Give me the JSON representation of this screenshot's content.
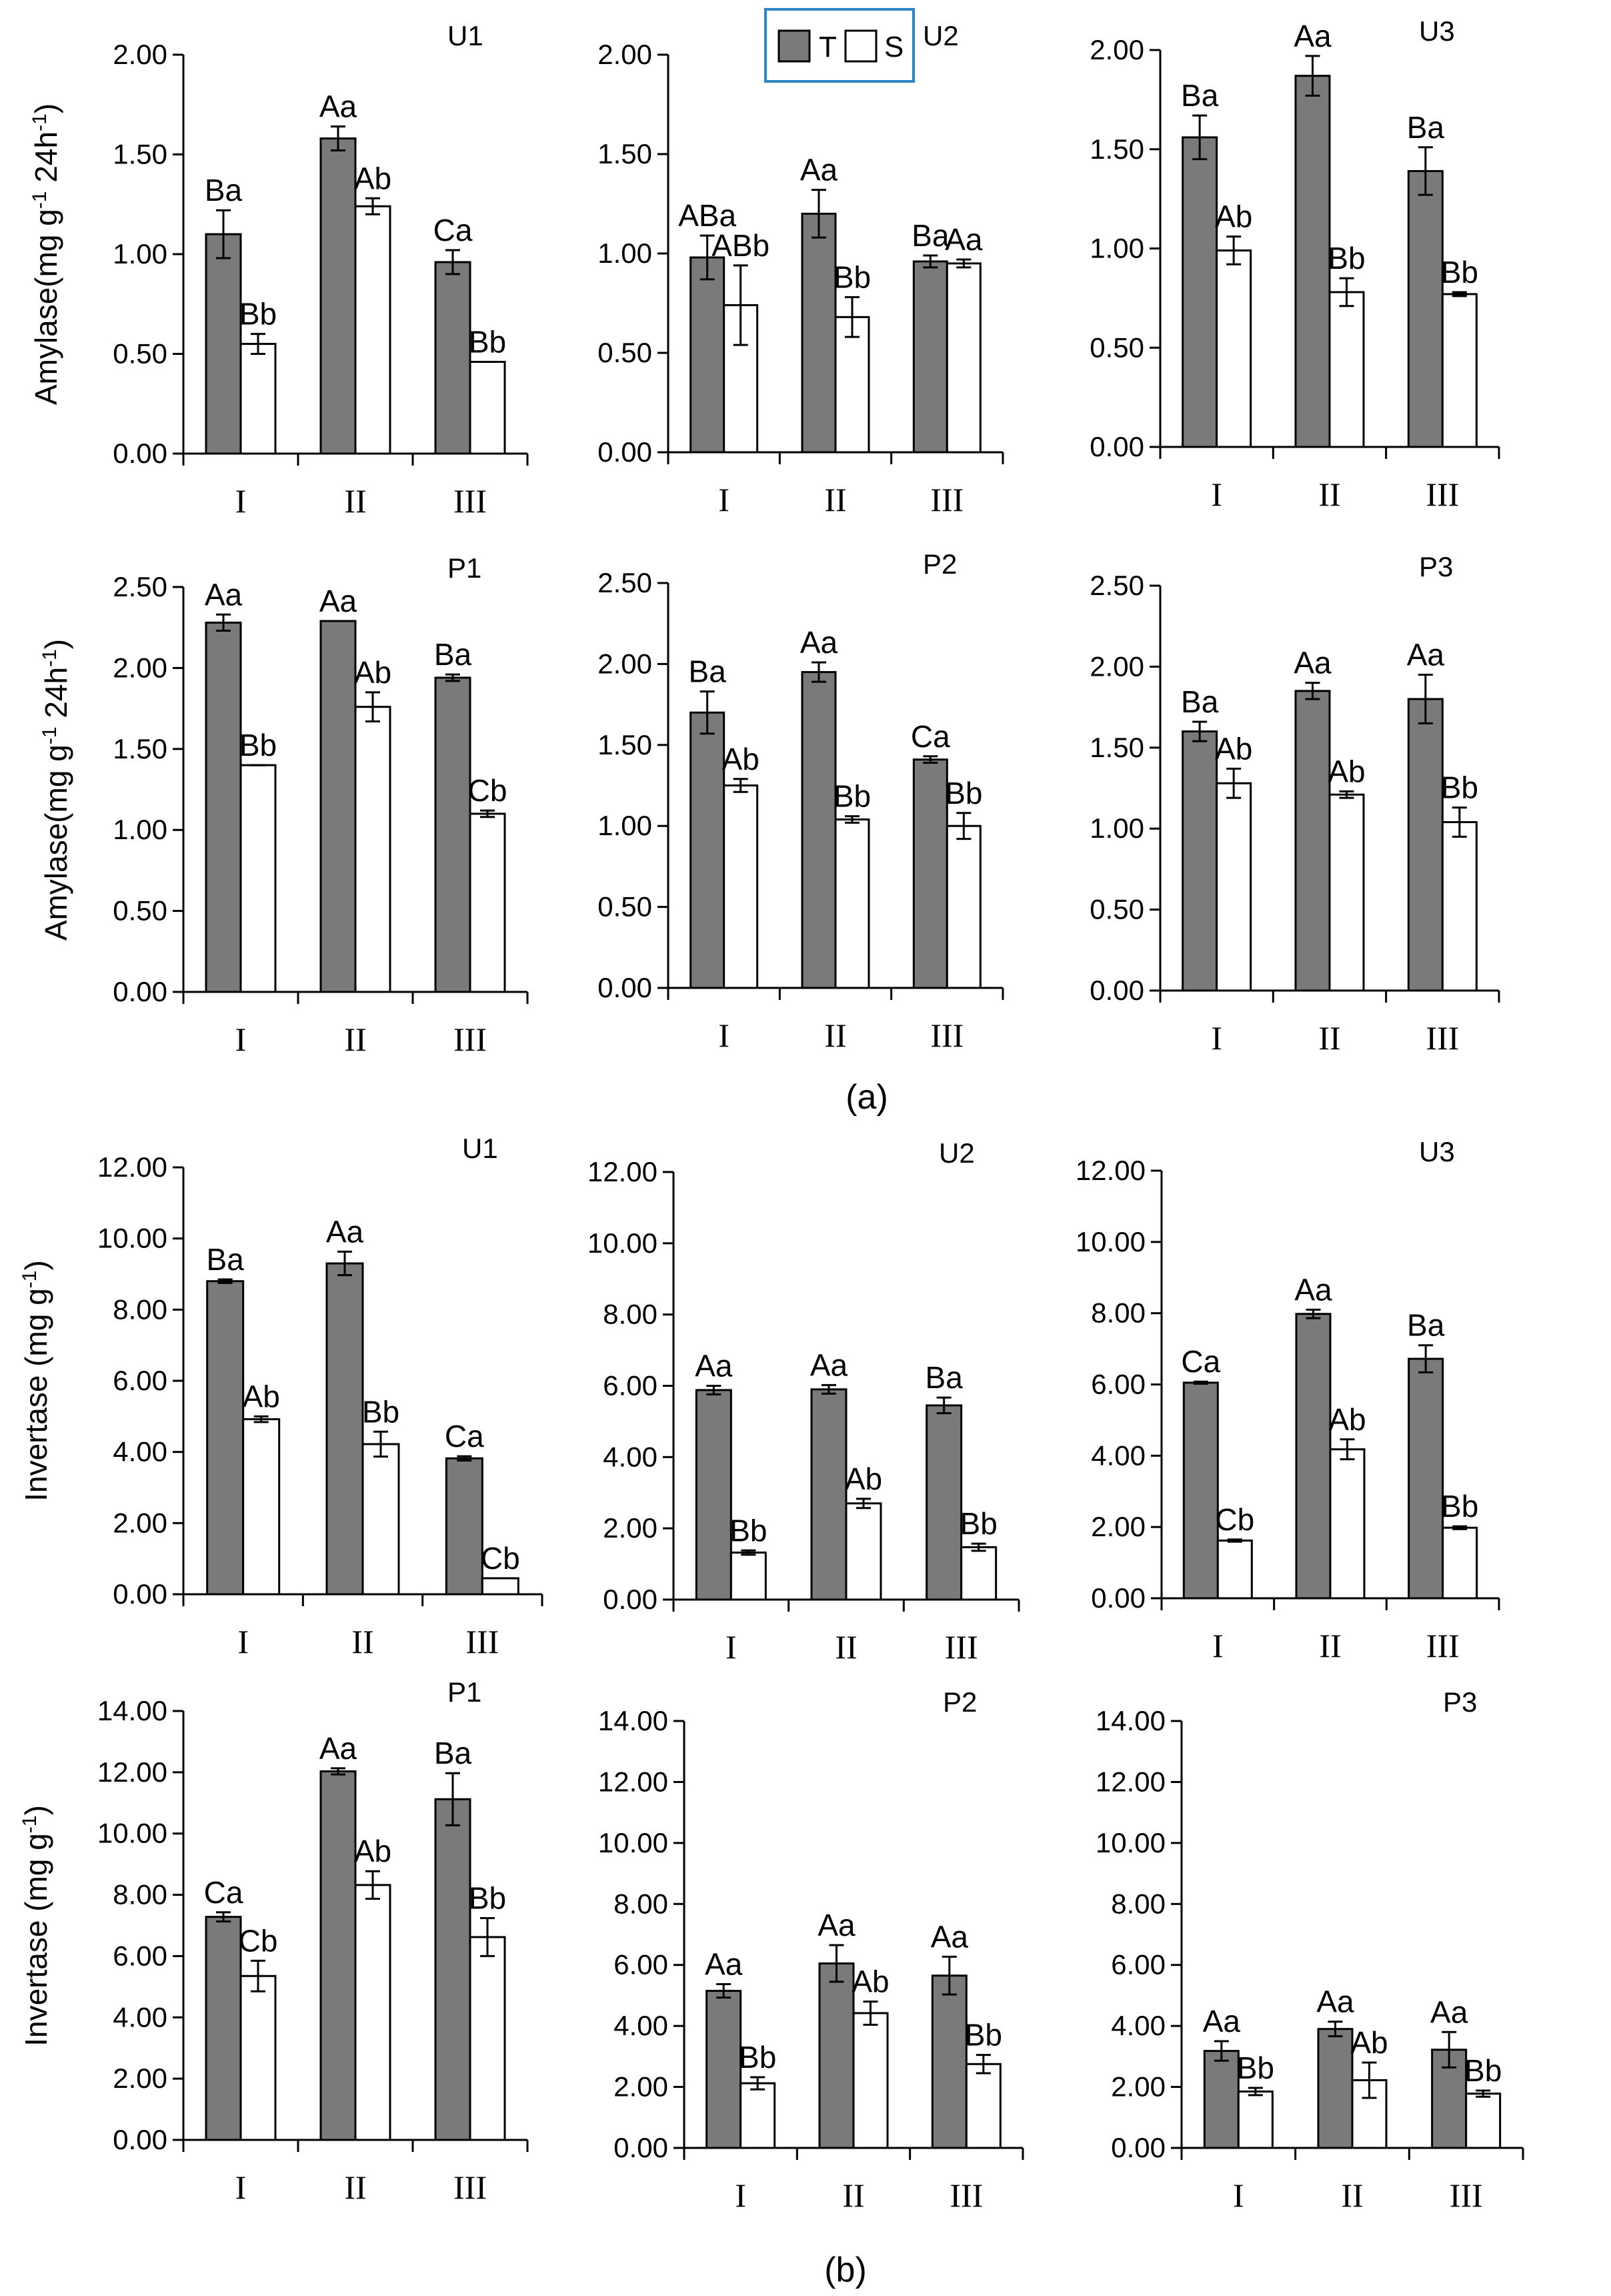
{
  "colors": {
    "treated": "#7a7a7a",
    "control": "#ffffff",
    "legend_border": "#2e86c1"
  },
  "legend": {
    "t_label": "T",
    "s_label": "S"
  },
  "captions": {
    "a": "(a)",
    "b": "(b)"
  },
  "chart_data": [
    {
      "type": "bar",
      "title": "U1",
      "ylabel": "Amylase(mg g^-1 24h^-1)",
      "ylim": [
        0,
        2.0
      ],
      "yticks": [
        "0.00",
        "0.50",
        "1.00",
        "1.50",
        "2.00"
      ],
      "categories": [
        "I",
        "II",
        "III"
      ],
      "series": [
        {
          "name": "T",
          "values": [
            1.1,
            1.58,
            0.96
          ],
          "errors": [
            0.12,
            0.06,
            0.06
          ],
          "labels": [
            "Ba",
            "Aa",
            "Ca"
          ]
        },
        {
          "name": "S",
          "values": [
            0.55,
            1.24,
            0.46
          ],
          "errors": [
            0.05,
            0.04,
            0.0
          ],
          "labels": [
            "Bb",
            "Ab",
            "Bb"
          ]
        }
      ]
    },
    {
      "type": "bar",
      "title": "U2",
      "ylabel": "",
      "ylim": [
        0,
        2.0
      ],
      "yticks": [
        "0.00",
        "0.50",
        "1.00",
        "1.50",
        "2.00"
      ],
      "categories": [
        "I",
        "II",
        "III"
      ],
      "series": [
        {
          "name": "T",
          "values": [
            0.98,
            1.2,
            0.96
          ],
          "errors": [
            0.11,
            0.12,
            0.03
          ],
          "labels": [
            "ABa",
            "Aa",
            "Ba"
          ]
        },
        {
          "name": "S",
          "values": [
            0.74,
            0.68,
            0.95
          ],
          "errors": [
            0.2,
            0.1,
            0.02
          ],
          "labels": [
            "ABb",
            "Bb",
            "Aa"
          ]
        }
      ]
    },
    {
      "type": "bar",
      "title": "U3",
      "ylabel": "",
      "ylim": [
        0,
        2.0
      ],
      "yticks": [
        "0.00",
        "0.50",
        "1.00",
        "1.50",
        "2.00"
      ],
      "categories": [
        "I",
        "II",
        "III"
      ],
      "series": [
        {
          "name": "T",
          "values": [
            1.56,
            1.87,
            1.39
          ],
          "errors": [
            0.11,
            0.1,
            0.12
          ],
          "labels": [
            "Ba",
            "Aa",
            "Ba"
          ]
        },
        {
          "name": "S",
          "values": [
            0.99,
            0.78,
            0.77
          ],
          "errors": [
            0.07,
            0.07,
            0.01
          ],
          "labels": [
            "Ab",
            "Bb",
            "Bb"
          ]
        }
      ]
    },
    {
      "type": "bar",
      "title": "P1",
      "ylabel": "Amylase(mg g^-1 24h^-1)",
      "ylim": [
        0,
        2.5
      ],
      "yticks": [
        "0.00",
        "0.50",
        "1.00",
        "1.50",
        "2.00",
        "2.50"
      ],
      "categories": [
        "I",
        "II",
        "III"
      ],
      "series": [
        {
          "name": "T",
          "values": [
            2.28,
            2.29,
            1.94
          ],
          "errors": [
            0.05,
            0.0,
            0.02
          ],
          "labels": [
            "Aa",
            "Aa",
            "Ba"
          ]
        },
        {
          "name": "S",
          "values": [
            1.4,
            1.76,
            1.1
          ],
          "errors": [
            0.0,
            0.09,
            0.02
          ],
          "labels": [
            "Bb",
            "Ab",
            "Cb"
          ]
        }
      ]
    },
    {
      "type": "bar",
      "title": "P2",
      "ylabel": "",
      "ylim": [
        0,
        2.5
      ],
      "yticks": [
        "0.00",
        "0.50",
        "1.00",
        "1.50",
        "2.00",
        "2.50"
      ],
      "categories": [
        "I",
        "II",
        "III"
      ],
      "series": [
        {
          "name": "T",
          "values": [
            1.7,
            1.95,
            1.41
          ],
          "errors": [
            0.13,
            0.06,
            0.02
          ],
          "labels": [
            "Ba",
            "Aa",
            "Ca"
          ]
        },
        {
          "name": "S",
          "values": [
            1.25,
            1.04,
            1.0
          ],
          "errors": [
            0.04,
            0.02,
            0.08
          ],
          "labels": [
            "Ab",
            "Bb",
            "Bb"
          ]
        }
      ]
    },
    {
      "type": "bar",
      "title": "P3",
      "ylabel": "",
      "ylim": [
        0,
        2.5
      ],
      "yticks": [
        "0.00",
        "0.50",
        "1.00",
        "1.50",
        "2.00",
        "2.50"
      ],
      "categories": [
        "I",
        "II",
        "III"
      ],
      "series": [
        {
          "name": "T",
          "values": [
            1.6,
            1.85,
            1.8
          ],
          "errors": [
            0.06,
            0.05,
            0.15
          ],
          "labels": [
            "Ba",
            "Aa",
            "Aa"
          ]
        },
        {
          "name": "S",
          "values": [
            1.28,
            1.21,
            1.04
          ],
          "errors": [
            0.09,
            0.02,
            0.09
          ],
          "labels": [
            "Ab",
            "Ab",
            "Bb"
          ]
        }
      ]
    },
    {
      "type": "bar",
      "title": "U1",
      "ylabel": "Invertase (mg g^-1)",
      "ylim": [
        0,
        12
      ],
      "yticks": [
        "0.00",
        "2.00",
        "4.00",
        "6.00",
        "8.00",
        "10.00",
        "12.00"
      ],
      "categories": [
        "I",
        "II",
        "III"
      ],
      "series": [
        {
          "name": "T",
          "values": [
            8.8,
            9.3,
            3.82
          ],
          "errors": [
            0.05,
            0.33,
            0.06
          ],
          "labels": [
            "Ba",
            "Aa",
            "Ca"
          ]
        },
        {
          "name": "S",
          "values": [
            4.92,
            4.22,
            0.45
          ],
          "errors": [
            0.08,
            0.35,
            0.0
          ],
          "labels": [
            "Ab",
            "Bb",
            "Cb"
          ]
        }
      ]
    },
    {
      "type": "bar",
      "title": "U2",
      "ylabel": "",
      "ylim": [
        0,
        12
      ],
      "yticks": [
        "0.00",
        "2.00",
        "4.00",
        "6.00",
        "8.00",
        "10.00",
        "12.00"
      ],
      "categories": [
        "I",
        "II",
        "III"
      ],
      "series": [
        {
          "name": "T",
          "values": [
            5.88,
            5.9,
            5.45
          ],
          "errors": [
            0.12,
            0.12,
            0.22
          ],
          "labels": [
            "Aa",
            "Aa",
            "Ba"
          ]
        },
        {
          "name": "S",
          "values": [
            1.32,
            2.7,
            1.47
          ],
          "errors": [
            0.06,
            0.13,
            0.1
          ],
          "labels": [
            "Bb",
            "Ab",
            "Bb"
          ]
        }
      ]
    },
    {
      "type": "bar",
      "title": "U3",
      "ylabel": "",
      "ylim": [
        0,
        12
      ],
      "yticks": [
        "0.00",
        "2.00",
        "4.00",
        "6.00",
        "8.00",
        "10.00",
        "12.00"
      ],
      "categories": [
        "I",
        "II",
        "III"
      ],
      "series": [
        {
          "name": "T",
          "values": [
            6.05,
            7.98,
            6.72
          ],
          "errors": [
            0.03,
            0.12,
            0.38
          ],
          "labels": [
            "Ca",
            "Aa",
            "Ba"
          ]
        },
        {
          "name": "S",
          "values": [
            1.62,
            4.18,
            1.98
          ],
          "errors": [
            0.03,
            0.28,
            0.04
          ],
          "labels": [
            "Cb",
            "Ab",
            "Bb"
          ]
        }
      ]
    },
    {
      "type": "bar",
      "title": "P1",
      "ylabel": "Invertase (mg g^-1)",
      "ylim": [
        0,
        14
      ],
      "yticks": [
        "0.00",
        "2.00",
        "4.00",
        "6.00",
        "8.00",
        "10.00",
        "12.00",
        "14.00"
      ],
      "categories": [
        "I",
        "II",
        "III"
      ],
      "series": [
        {
          "name": "T",
          "values": [
            7.28,
            12.03,
            11.12
          ],
          "errors": [
            0.15,
            0.1,
            0.85
          ],
          "labels": [
            "Ca",
            "Aa",
            "Ba"
          ]
        },
        {
          "name": "S",
          "values": [
            5.35,
            8.32,
            6.62
          ],
          "errors": [
            0.5,
            0.45,
            0.62
          ],
          "labels": [
            "Cb",
            "Ab",
            "Bb"
          ]
        }
      ]
    },
    {
      "type": "bar",
      "title": "P2",
      "ylabel": "",
      "ylim": [
        0,
        14
      ],
      "yticks": [
        "0.00",
        "2.00",
        "4.00",
        "6.00",
        "8.00",
        "10.00",
        "12.00",
        "14.00"
      ],
      "categories": [
        "I",
        "II",
        "III"
      ],
      "series": [
        {
          "name": "T",
          "values": [
            5.15,
            6.05,
            5.65
          ],
          "errors": [
            0.22,
            0.6,
            0.62
          ],
          "labels": [
            "Aa",
            "Aa",
            "Aa"
          ]
        },
        {
          "name": "S",
          "values": [
            2.12,
            4.42,
            2.75
          ],
          "errors": [
            0.2,
            0.38,
            0.3
          ],
          "labels": [
            "Bb",
            "Ab",
            "Bb"
          ]
        }
      ]
    },
    {
      "type": "bar",
      "title": "P3",
      "ylabel": "",
      "ylim": [
        0,
        14
      ],
      "yticks": [
        "0.00",
        "2.00",
        "4.00",
        "6.00",
        "8.00",
        "10.00",
        "12.00",
        "14.00"
      ],
      "categories": [
        "I",
        "II",
        "III"
      ],
      "series": [
        {
          "name": "T",
          "values": [
            3.18,
            3.9,
            3.22
          ],
          "errors": [
            0.32,
            0.24,
            0.58
          ],
          "labels": [
            "Aa",
            "Aa",
            "Aa"
          ]
        },
        {
          "name": "S",
          "values": [
            1.85,
            2.22,
            1.78
          ],
          "errors": [
            0.12,
            0.58,
            0.1
          ],
          "labels": [
            "Bb",
            "Ab",
            "Bb"
          ]
        }
      ]
    }
  ]
}
